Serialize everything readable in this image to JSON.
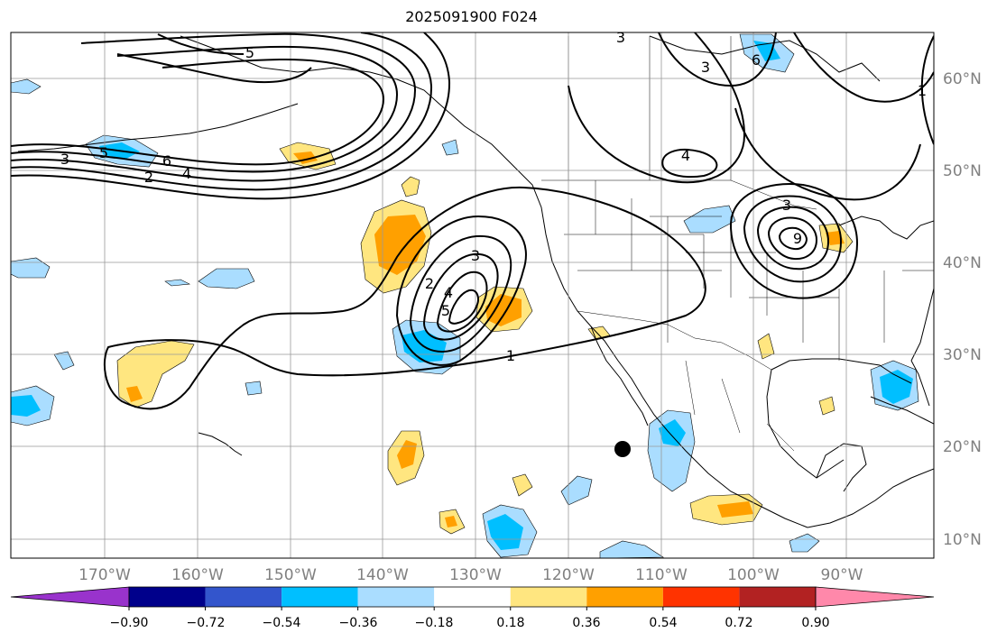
{
  "title": "2025091900 F024",
  "longitude_labels": [
    "170°W",
    "160°W",
    "150°W",
    "140°W",
    "130°W",
    "120°W",
    "110°W",
    "100°W",
    "90°W"
  ],
  "latitude_labels": [
    "60°N",
    "50°N",
    "40°N",
    "30°N",
    "20°N",
    "10°N"
  ],
  "colorbar": {
    "ticks": [
      "−0.90",
      "−0.72",
      "−0.54",
      "−0.36",
      "−0.18",
      "0.18",
      "0.36",
      "0.54",
      "0.72",
      "0.90"
    ],
    "colors": [
      "#9933cc",
      "#00008b",
      "#3355cc",
      "#00bfff",
      "#aaddff",
      "#ffffff",
      "#ffe680",
      "#ffa000",
      "#ff3300",
      "#b22222",
      "#ff88aa"
    ]
  },
  "contour_labels": [
    "5",
    "3",
    "6",
    "5",
    "3",
    "2",
    "4",
    "4",
    "3",
    "2",
    "4",
    "5",
    "3",
    "1",
    "3",
    "6",
    "9",
    "1"
  ],
  "colors": {
    "contour": "#000000",
    "grid": "#999999",
    "axis_text": "#808080",
    "coast": "#000000"
  },
  "marker": {
    "label": "storm-center-dot"
  }
}
